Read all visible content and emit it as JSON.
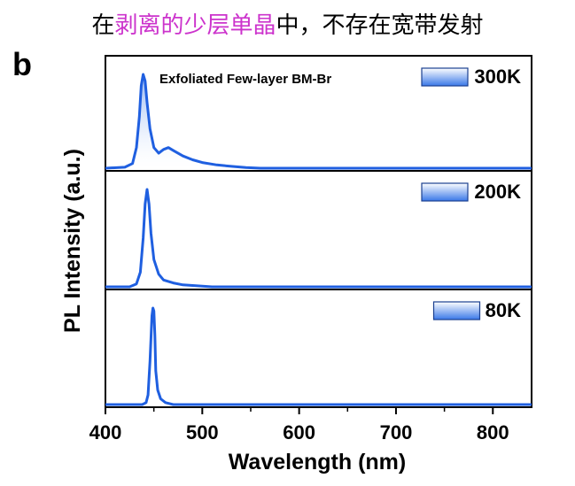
{
  "caption": {
    "prefix": "在",
    "highlight": "剥离的少层单晶",
    "suffix": "中，不存在宽带发射"
  },
  "panel_letter": "b",
  "colors": {
    "line": "#1f5fe0",
    "fill_top": "#3a78e8",
    "fill_bottom": "#ffffff",
    "caption_highlight": "#cc33cc"
  },
  "chart_data": {
    "type": "line",
    "xlabel": "Wavelength (nm)",
    "ylabel": "PL Intensity (a.u.)",
    "xlim": [
      400,
      840
    ],
    "xticks": [
      400,
      500,
      600,
      700,
      800
    ],
    "sample_label": "Exfoliated Few-layer BM-Br",
    "panels": [
      {
        "name": "300K",
        "filled": true,
        "points": [
          [
            400,
            0.0
          ],
          [
            420,
            0.01
          ],
          [
            428,
            0.05
          ],
          [
            432,
            0.22
          ],
          [
            435,
            0.55
          ],
          [
            437,
            0.88
          ],
          [
            439,
            1.0
          ],
          [
            441,
            0.93
          ],
          [
            443,
            0.7
          ],
          [
            446,
            0.42
          ],
          [
            450,
            0.22
          ],
          [
            455,
            0.16
          ],
          [
            460,
            0.2
          ],
          [
            465,
            0.22
          ],
          [
            470,
            0.19
          ],
          [
            480,
            0.13
          ],
          [
            490,
            0.09
          ],
          [
            500,
            0.06
          ],
          [
            515,
            0.035
          ],
          [
            530,
            0.02
          ],
          [
            545,
            0.008
          ],
          [
            560,
            0.0
          ],
          [
            840,
            0.0
          ]
        ]
      },
      {
        "name": "200K",
        "filled": false,
        "points": [
          [
            400,
            0.0
          ],
          [
            425,
            0.0
          ],
          [
            432,
            0.03
          ],
          [
            436,
            0.15
          ],
          [
            439,
            0.5
          ],
          [
            441,
            0.85
          ],
          [
            443,
            1.0
          ],
          [
            445,
            0.85
          ],
          [
            447,
            0.55
          ],
          [
            450,
            0.28
          ],
          [
            455,
            0.13
          ],
          [
            460,
            0.07
          ],
          [
            470,
            0.04
          ],
          [
            480,
            0.02
          ],
          [
            495,
            0.01
          ],
          [
            510,
            0.0
          ],
          [
            840,
            0.0
          ]
        ]
      },
      {
        "name": "80K",
        "filled": false,
        "points": [
          [
            400,
            0.0
          ],
          [
            438,
            0.0
          ],
          [
            442,
            0.02
          ],
          [
            444,
            0.1
          ],
          [
            446,
            0.45
          ],
          [
            448,
            0.92
          ],
          [
            449,
            1.0
          ],
          [
            450,
            0.97
          ],
          [
            451,
            0.72
          ],
          [
            452,
            0.35
          ],
          [
            454,
            0.15
          ],
          [
            457,
            0.06
          ],
          [
            462,
            0.02
          ],
          [
            470,
            0.0
          ],
          [
            840,
            0.0
          ]
        ]
      }
    ]
  }
}
